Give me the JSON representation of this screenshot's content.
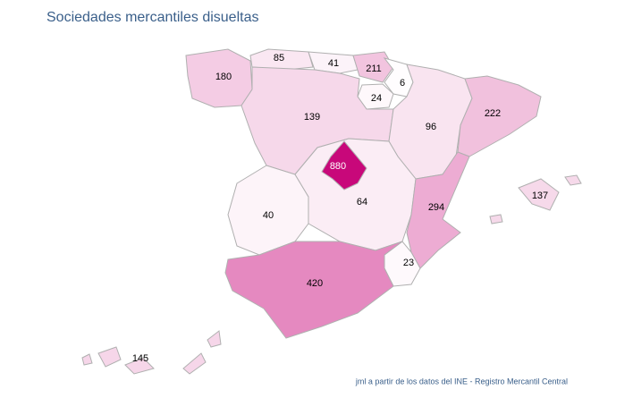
{
  "chart_data": {
    "type": "choropleth",
    "title": "Sociedades mercantiles disueltas",
    "values": [
      180,
      85,
      41,
      211,
      6,
      24,
      139,
      96,
      222,
      880,
      40,
      64,
      294,
      137,
      23,
      420,
      145
    ],
    "color": "#c8087a",
    "source": "jml a partir de los datos del INE - Registro Mercantil Central"
  }
}
